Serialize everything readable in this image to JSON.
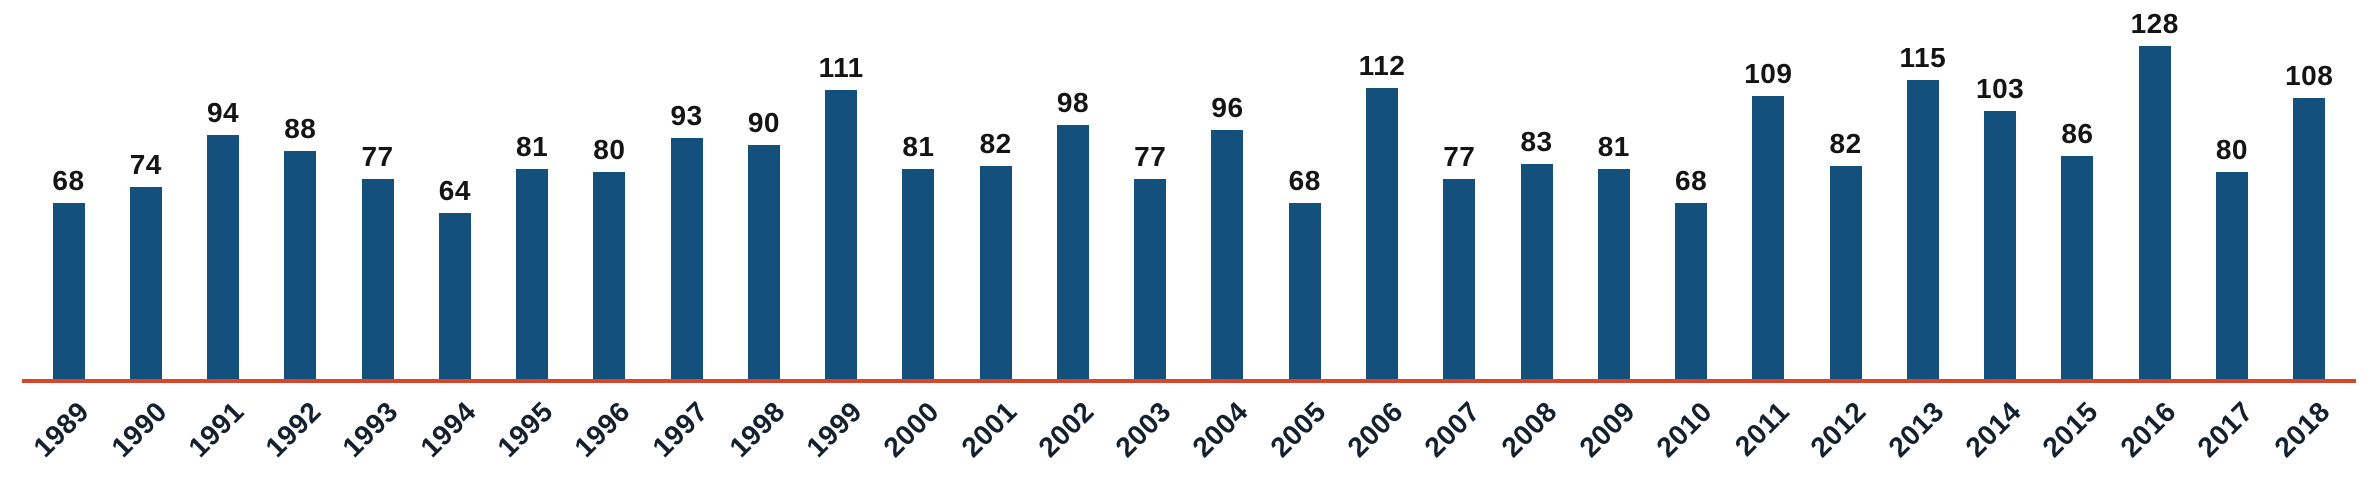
{
  "chart_data": {
    "type": "bar",
    "title": "",
    "xlabel": "",
    "ylabel": "",
    "categories": [
      "1989",
      "1990",
      "1991",
      "1992",
      "1993",
      "1994",
      "1995",
      "1996",
      "1997",
      "1998",
      "1999",
      "2000",
      "2001",
      "2002",
      "2003",
      "2004",
      "2005",
      "2006",
      "2007",
      "2008",
      "2009",
      "2010",
      "2011",
      "2012",
      "2013",
      "2014",
      "2015",
      "2016",
      "2017",
      "2018"
    ],
    "values": [
      68,
      74,
      94,
      88,
      77,
      64,
      81,
      80,
      93,
      90,
      111,
      81,
      82,
      98,
      77,
      96,
      68,
      112,
      77,
      83,
      81,
      68,
      109,
      82,
      115,
      103,
      86,
      128,
      80,
      108
    ],
    "ylim": [
      0,
      135
    ],
    "grid": false,
    "legend": null,
    "value_labels_shown": true,
    "colors": {
      "bar": "#14507c",
      "baseline": "#d6472b",
      "value_label": "#141414",
      "tick_label": "#14202e"
    }
  }
}
